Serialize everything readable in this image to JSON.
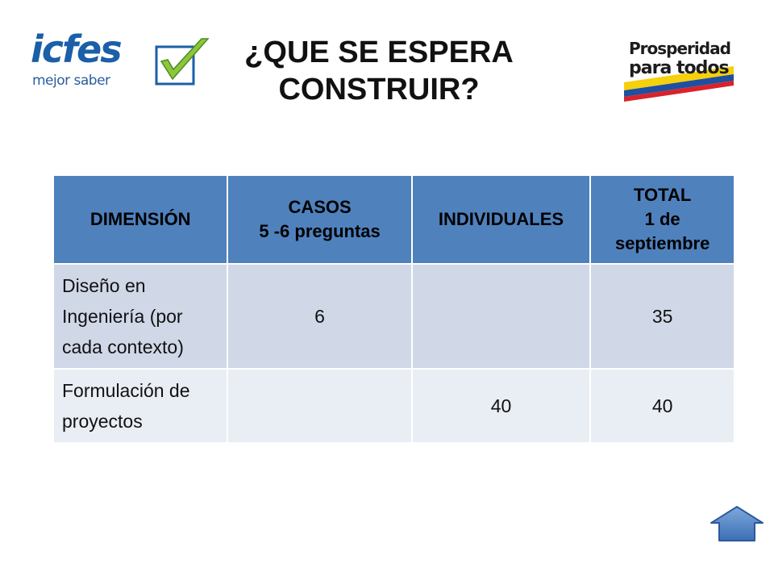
{
  "logos": {
    "left": {
      "brand": "icfes",
      "tagline": "mejor saber",
      "icon": "check-mark-icon"
    },
    "right": {
      "line1": "Prosperidad",
      "line2": "para todos"
    }
  },
  "title": {
    "line1": "¿QUE SE ESPERA",
    "line2": "CONSTRUIR?"
  },
  "table": {
    "headers": [
      {
        "lines": [
          "DIMENSIÓN"
        ]
      },
      {
        "lines": [
          "CASOS",
          "5 -6 preguntas"
        ]
      },
      {
        "lines": [
          "INDIVIDUALES"
        ]
      },
      {
        "lines": [
          "TOTAL",
          "1 de",
          "septiembre"
        ]
      }
    ],
    "rows": [
      {
        "dimension": "Diseño en Ingeniería  (por cada contexto)",
        "casos": "6",
        "individuales": "",
        "total": "35"
      },
      {
        "dimension": "Formulación de proyectos",
        "casos": "",
        "individuales": "40",
        "total": "40"
      }
    ]
  },
  "nav": {
    "home_icon": "home-arrow-icon"
  },
  "colors": {
    "header_bg": "#4f81bd",
    "row1_bg": "#d0d8e8",
    "row2_bg": "#e9edf4",
    "icfes_blue": "#1b5fa8",
    "check_green": "#8cc63f"
  }
}
